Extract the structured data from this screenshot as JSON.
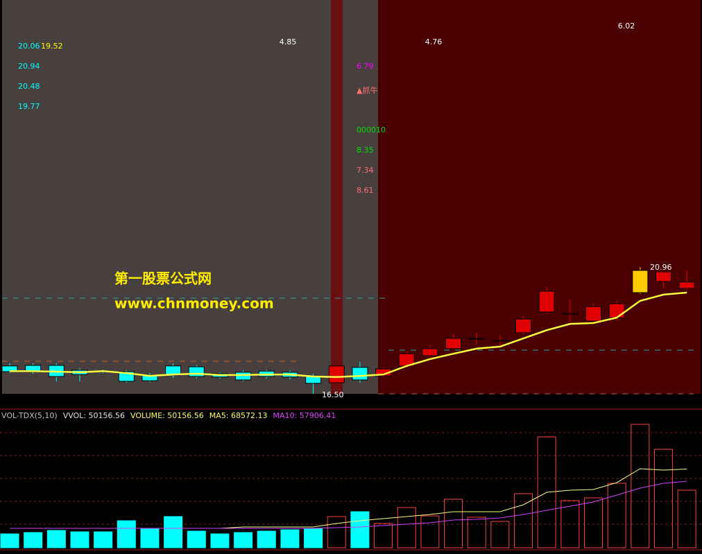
{
  "chart_data": [
    {
      "type": "candlestick",
      "open": [
        17.48,
        17.5,
        17.5,
        17.33,
        17.3,
        17.28,
        17.16,
        17.48,
        17.45,
        17.21,
        17.26,
        17.3,
        17.26,
        17.13,
        16.89,
        17.43,
        17.13,
        17.48,
        17.84,
        18.09,
        18.43,
        18.35,
        18.65,
        19.38,
        19.3,
        19.06,
        19.18,
        20.06,
        20.45,
        20.21
      ],
      "high": [
        17.57,
        17.57,
        17.57,
        17.4,
        17.35,
        17.33,
        17.23,
        17.57,
        17.52,
        17.26,
        17.33,
        17.35,
        17.33,
        17.21,
        17.52,
        17.62,
        17.43,
        18.01,
        18.21,
        18.6,
        18.65,
        18.57,
        19.23,
        20.26,
        19.82,
        19.67,
        19.77,
        20.96,
        20.84,
        20.84
      ],
      "low": [
        17.23,
        17.21,
        16.94,
        16.94,
        17.23,
        16.89,
        16.91,
        17.06,
        17.04,
        17.04,
        16.94,
        17.04,
        17.01,
        16.5,
        16.84,
        16.89,
        17.09,
        17.43,
        17.79,
        18.04,
        18.23,
        18.21,
        18.6,
        19.33,
        19.04,
        19.01,
        19.09,
        20.01,
        20.23,
        20.16
      ],
      "close": [
        17.28,
        17.28,
        17.11,
        17.18,
        17.28,
        16.94,
        16.96,
        17.16,
        17.11,
        17.09,
        16.99,
        17.11,
        17.09,
        16.87,
        17.48,
        16.99,
        17.38,
        17.91,
        18.09,
        18.45,
        18.45,
        18.38,
        19.13,
        20.11,
        19.33,
        19.57,
        19.67,
        20.84,
        20.79,
        20.43
      ],
      "colors": [
        "#00ffff",
        "#00ffff",
        "#00ffff",
        "#00ffff",
        "#00ffff",
        "#00ffff",
        "#00ffff",
        "#00ffff",
        "#00ffff",
        "#00ffff",
        "#00ffff",
        "#00ffff",
        "#00ffff",
        "#00ffff",
        "#e00000",
        "#00ffff",
        "#e00000",
        "#e00000",
        "#e00000",
        "#e00000",
        "#e00000",
        "#e00000",
        "#e00000",
        "#e00000",
        "#e00000",
        "#e00000",
        "#e00000",
        "#ffcc00",
        "#e00000",
        "#e00000"
      ],
      "series": [
        {
          "color": "#ffff40",
          "values": [
            17.3,
            17.3,
            17.28,
            17.26,
            17.3,
            17.23,
            17.13,
            17.18,
            17.21,
            17.16,
            17.16,
            17.18,
            17.18,
            17.11,
            17.09,
            17.13,
            17.18,
            17.48,
            17.72,
            17.91,
            18.09,
            18.16,
            18.45,
            18.74,
            18.96,
            18.99,
            19.18,
            19.77,
            19.99,
            20.06
          ]
        }
      ],
      "ylim": [
        16.5,
        30.35
      ],
      "annotations": [
        {
          "text": "4.85",
          "color": "#ffffff"
        },
        {
          "text": "4.76",
          "color": "#ffffff"
        },
        {
          "text": "6.02",
          "color": "#ffffff"
        },
        {
          "text": "20.06",
          "color": "#00ffff"
        },
        {
          "text": "19.52",
          "color": "#ffff00"
        },
        {
          "text": "20.94",
          "color": "#00ffff"
        },
        {
          "text": "20.48",
          "color": "#00ffff"
        },
        {
          "text": "19.77",
          "color": "#00ffff"
        },
        {
          "text": "6.79",
          "color": "#ff00ff"
        },
        {
          "text": "▲抓牛",
          "color": "#ff7070"
        },
        {
          "text": "000010",
          "color": "#00e000"
        },
        {
          "text": "8.35",
          "color": "#00e000"
        },
        {
          "text": "7.34",
          "color": "#ff7070"
        },
        {
          "text": "8.61",
          "color": "#ff7070"
        },
        {
          "text": "16.50",
          "color": "#ffffff"
        },
        {
          "text": "20.96",
          "color": "#ffffff"
        }
      ],
      "watermark": [
        "第一股票公式网",
        "www.chnmoney.com"
      ]
    },
    {
      "type": "bar",
      "values": [
        12080,
        13290,
        15100,
        13890,
        13890,
        23560,
        16310,
        27180,
        14500,
        12080,
        13290,
        14500,
        15700,
        16910,
        27180,
        31410,
        21140,
        35030,
        27780,
        42280,
        26580,
        22950,
        47110,
        96640,
        41070,
        43490,
        56170,
        107510,
        85770,
        50156.56
      ],
      "series": [
        {
          "color": "#ffff80",
          "values": [
            16910,
            16910,
            16910,
            16910,
            16910,
            16910,
            16910,
            16910,
            16910,
            16910,
            18120,
            18120,
            18120,
            18120,
            21140,
            23560,
            25370,
            27180,
            28990,
            31410,
            31410,
            31410,
            37450,
            48320,
            50130,
            50740,
            56780,
            68860,
            67650,
            68572.13
          ]
        },
        {
          "color": "#d040ff",
          "values": [
            16910,
            16910,
            16910,
            16910,
            16910,
            16910,
            16910,
            16910,
            16910,
            16910,
            16910,
            16910,
            16910,
            16910,
            17520,
            18120,
            19330,
            20540,
            21740,
            24160,
            24760,
            25970,
            28990,
            32620,
            36240,
            39860,
            45900,
            51940,
            56170,
            57906.41
          ]
        }
      ],
      "ylim": [
        0,
        119600
      ],
      "header": [
        {
          "text": "VOL-TDX(5,10)",
          "color": "#c0c0c0"
        },
        {
          "text": "VVOL: 50156.56",
          "color": "#e0e0e0"
        },
        {
          "text": "VOLUME: 50156.56",
          "color": "#ffff60"
        },
        {
          "text": "MA5: 68572.13",
          "color": "#ffff60"
        },
        {
          "text": "MA10: 57906.41",
          "color": "#e040ff"
        }
      ]
    }
  ]
}
